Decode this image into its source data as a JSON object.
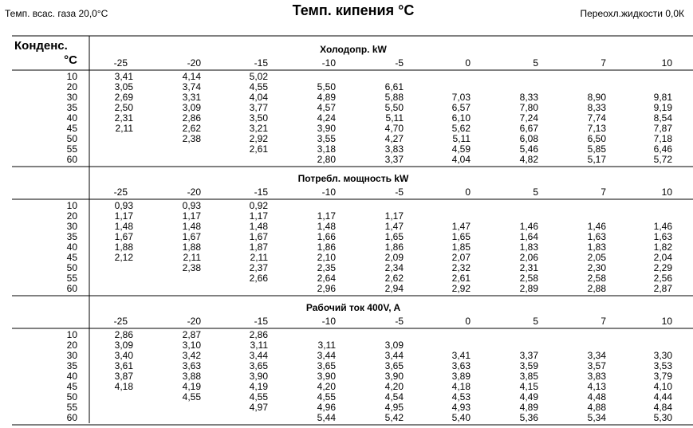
{
  "header": {
    "left": "Темп. всас. газа 20,0°С",
    "title": "Темп. кипения °С",
    "right": "Переохл.жидкости 0,0К"
  },
  "table": {
    "corner": [
      "Конденс.",
      "°С"
    ],
    "columns": [
      "-25",
      "-20",
      "-15",
      "-10",
      "-5",
      "0",
      "5",
      "7",
      "10"
    ],
    "row_labels": [
      "10",
      "20",
      "30",
      "35",
      "40",
      "45",
      "50",
      "55",
      "60"
    ],
    "sections": [
      {
        "title": "Холодопр. kW",
        "rows": [
          [
            "3,41",
            "4,14",
            "5,02",
            null,
            null,
            null,
            null,
            null,
            null
          ],
          [
            "3,05",
            "3,74",
            "4,55",
            "5,50",
            "6,61",
            null,
            null,
            null,
            null
          ],
          [
            "2,69",
            "3,31",
            "4,04",
            "4,89",
            "5,88",
            "7,03",
            "8,33",
            "8,90",
            "9,81"
          ],
          [
            "2,50",
            "3,09",
            "3,77",
            "4,57",
            "5,50",
            "6,57",
            "7,80",
            "8,33",
            "9,19"
          ],
          [
            "2,31",
            "2,86",
            "3,50",
            "4,24",
            "5,11",
            "6,10",
            "7,24",
            "7,74",
            "8,54"
          ],
          [
            "2,11",
            "2,62",
            "3,21",
            "3,90",
            "4,70",
            "5,62",
            "6,67",
            "7,13",
            "7,87"
          ],
          [
            null,
            "2,38",
            "2,92",
            "3,55",
            "4,27",
            "5,11",
            "6,08",
            "6,50",
            "7,18"
          ],
          [
            null,
            null,
            "2,61",
            "3,18",
            "3,83",
            "4,59",
            "5,46",
            "5,85",
            "6,46"
          ],
          [
            null,
            null,
            null,
            "2,80",
            "3,37",
            "4,04",
            "4,82",
            "5,17",
            "5,72"
          ]
        ]
      },
      {
        "title": "Потребл. мощность kW",
        "rows": [
          [
            "0,93",
            "0,93",
            "0,92",
            null,
            null,
            null,
            null,
            null,
            null
          ],
          [
            "1,17",
            "1,17",
            "1,17",
            "1,17",
            "1,17",
            null,
            null,
            null,
            null
          ],
          [
            "1,48",
            "1,48",
            "1,48",
            "1,48",
            "1,47",
            "1,47",
            "1,46",
            "1,46",
            "1,46"
          ],
          [
            "1,67",
            "1,67",
            "1,67",
            "1,66",
            "1,65",
            "1,65",
            "1,64",
            "1,63",
            "1,63"
          ],
          [
            "1,88",
            "1,88",
            "1,87",
            "1,86",
            "1,86",
            "1,85",
            "1,83",
            "1,83",
            "1,82"
          ],
          [
            "2,12",
            "2,11",
            "2,11",
            "2,10",
            "2,09",
            "2,07",
            "2,06",
            "2,05",
            "2,04"
          ],
          [
            null,
            "2,38",
            "2,37",
            "2,35",
            "2,34",
            "2,32",
            "2,31",
            "2,30",
            "2,29"
          ],
          [
            null,
            null,
            "2,66",
            "2,64",
            "2,62",
            "2,61",
            "2,58",
            "2,58",
            "2,56"
          ],
          [
            null,
            null,
            null,
            "2,96",
            "2,94",
            "2,92",
            "2,89",
            "2,88",
            "2,87"
          ]
        ]
      },
      {
        "title": "Рабочий ток 400V, A",
        "rows": [
          [
            "2,86",
            "2,87",
            "2,86",
            null,
            null,
            null,
            null,
            null,
            null
          ],
          [
            "3,09",
            "3,10",
            "3,11",
            "3,11",
            "3,09",
            null,
            null,
            null,
            null
          ],
          [
            "3,40",
            "3,42",
            "3,44",
            "3,44",
            "3,44",
            "3,41",
            "3,37",
            "3,34",
            "3,30"
          ],
          [
            "3,61",
            "3,63",
            "3,65",
            "3,65",
            "3,65",
            "3,63",
            "3,59",
            "3,57",
            "3,53"
          ],
          [
            "3,87",
            "3,88",
            "3,90",
            "3,90",
            "3,90",
            "3,89",
            "3,85",
            "3,83",
            "3,79"
          ],
          [
            "4,18",
            "4,19",
            "4,19",
            "4,20",
            "4,20",
            "4,18",
            "4,15",
            "4,13",
            "4,10"
          ],
          [
            null,
            "4,55",
            "4,55",
            "4,55",
            "4,54",
            "4,53",
            "4,49",
            "4,48",
            "4,44"
          ],
          [
            null,
            null,
            "4,97",
            "4,96",
            "4,95",
            "4,93",
            "4,89",
            "4,88",
            "4,84"
          ],
          [
            null,
            null,
            null,
            "5,44",
            "5,42",
            "5,40",
            "5,36",
            "5,34",
            "5,30"
          ]
        ]
      }
    ]
  }
}
